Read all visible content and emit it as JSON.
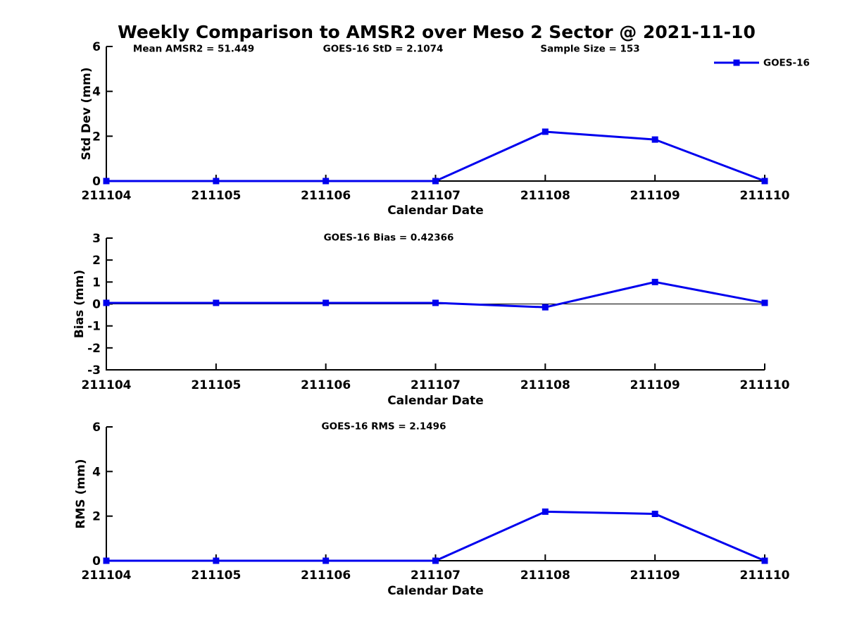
{
  "title": "Weekly Comparison to AMSR2 over Meso 2 Sector @ 2021-11-10",
  "colors": {
    "line": "#0000EE",
    "axis": "#000000",
    "background": "#FFFFFF"
  },
  "legend": {
    "label": "GOES-16",
    "position": "top-right",
    "boxed": false
  },
  "chart_data": [
    {
      "type": "line",
      "name": "std-dev",
      "title_annotations": [
        "Mean AMSR2 = 51.449",
        "GOES-16 StD = 2.1074",
        "Sample Size = 153"
      ],
      "categories": [
        "211104",
        "211105",
        "211106",
        "211107",
        "211108",
        "211109",
        "211110"
      ],
      "series": [
        {
          "name": "GOES-16",
          "values": [
            0,
            0,
            0,
            0,
            2.2,
            1.85,
            0
          ]
        }
      ],
      "xlabel": "Calendar Date",
      "ylabel": "Std Dev (mm)",
      "ylim": [
        0,
        6
      ],
      "yticks": [
        0,
        2,
        4,
        6
      ],
      "grid": false,
      "zero_line": false,
      "legend": [
        "GOES-16"
      ],
      "marker": "square"
    },
    {
      "type": "line",
      "name": "bias",
      "title_annotations": [
        "GOES-16 Bias  = 0.42366"
      ],
      "categories": [
        "211104",
        "211105",
        "211106",
        "211107",
        "211108",
        "211109",
        "211110"
      ],
      "series": [
        {
          "name": "GOES-16",
          "values": [
            0.05,
            0.05,
            0.05,
            0.05,
            -0.15,
            1.0,
            0.05
          ]
        }
      ],
      "xlabel": "Calendar Date",
      "ylabel": "Bias (mm)",
      "ylim": [
        -3,
        3
      ],
      "yticks": [
        -3,
        -2,
        -1,
        0,
        1,
        2,
        3
      ],
      "grid": false,
      "zero_line": true,
      "legend": null,
      "marker": "square"
    },
    {
      "type": "line",
      "name": "rms",
      "title_annotations": [
        "GOES-16 RMS = 2.1496"
      ],
      "categories": [
        "211104",
        "211105",
        "211106",
        "211107",
        "211108",
        "211109",
        "211110"
      ],
      "series": [
        {
          "name": "GOES-16",
          "values": [
            0,
            0,
            0,
            0,
            2.2,
            2.1,
            0
          ]
        }
      ],
      "xlabel": "Calendar Date",
      "ylabel": "RMS (mm)",
      "ylim": [
        0,
        6
      ],
      "yticks": [
        0,
        2,
        4,
        6
      ],
      "grid": false,
      "zero_line": false,
      "legend": null,
      "marker": "square"
    }
  ]
}
